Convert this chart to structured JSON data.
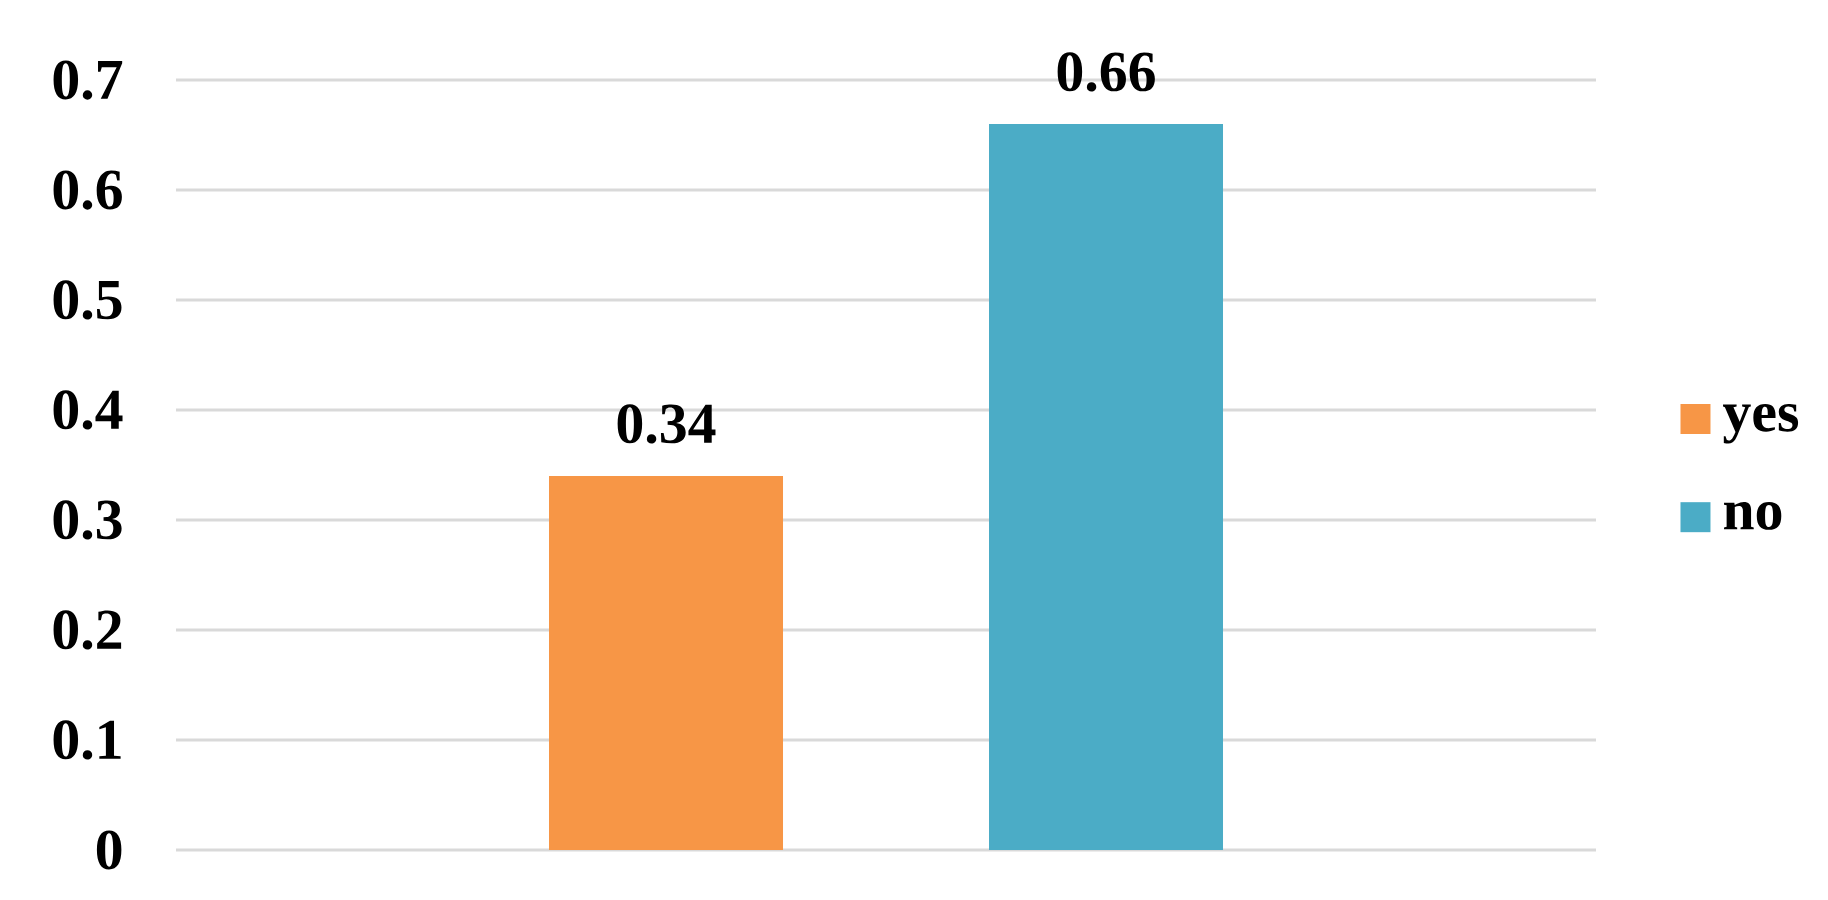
{
  "chart_data": {
    "type": "bar",
    "categories": [
      null
    ],
    "series": [
      {
        "name": "yes",
        "color": "#f79646",
        "values": [
          0.34
        ]
      },
      {
        "name": "no",
        "color": "#4bacc6",
        "values": [
          0.66
        ]
      }
    ],
    "ylim": [
      0,
      0.7
    ],
    "yticks": [
      0,
      0.1,
      0.2,
      0.3,
      0.4,
      0.5,
      0.6,
      0.7
    ],
    "grid": "y",
    "legend": "right",
    "data_labels": true
  }
}
